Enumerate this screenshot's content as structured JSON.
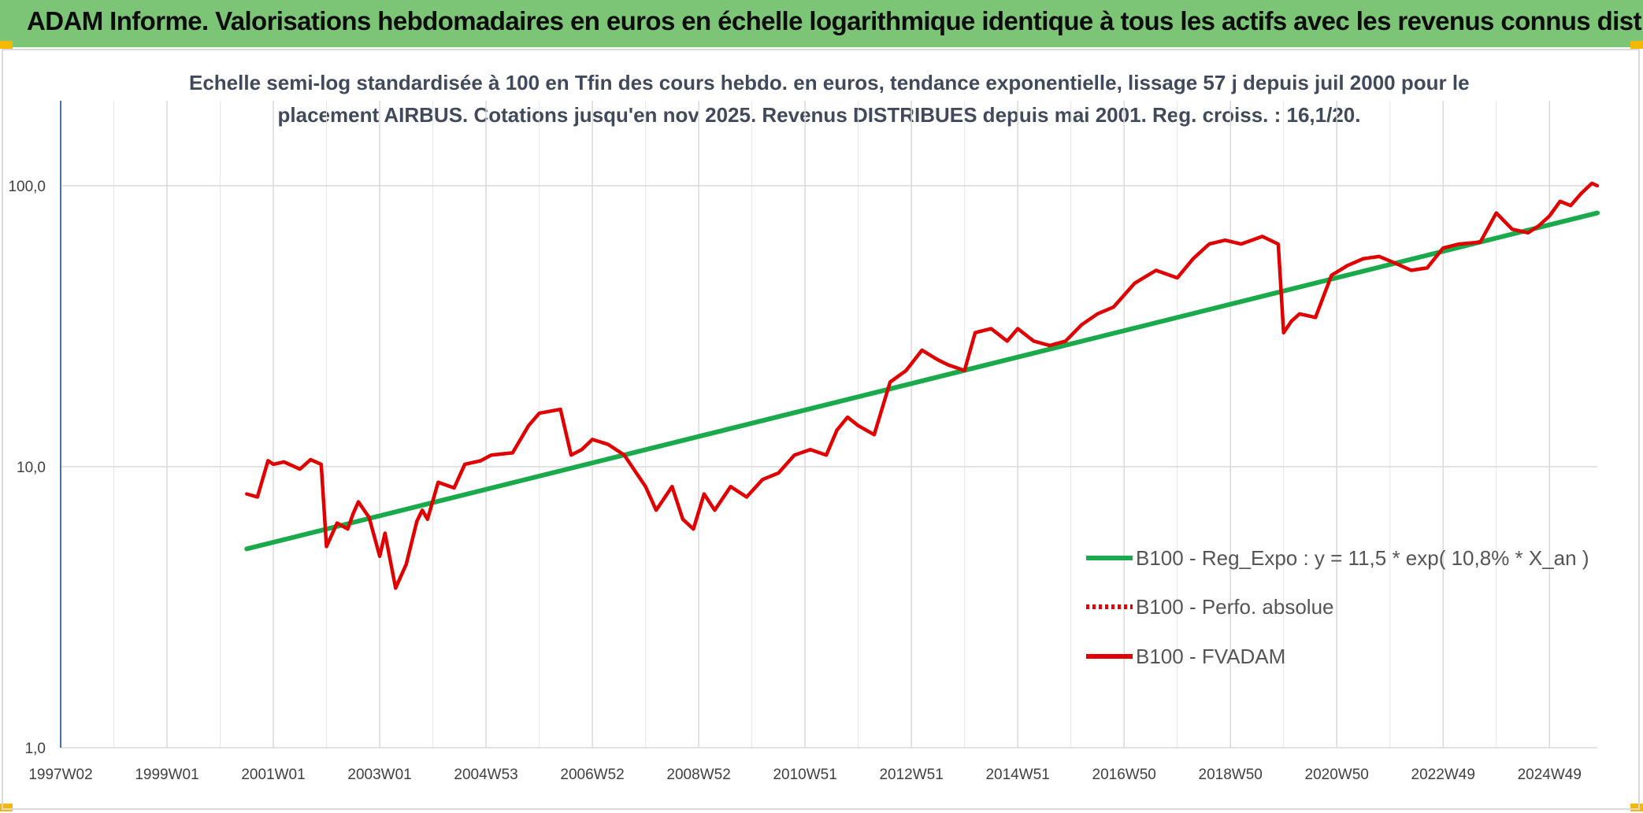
{
  "header": {
    "title": "ADAM Informe. Valorisations hebdomadaires en euros en échelle logarithmique identique à tous les actifs avec les revenus connus distribués",
    "background": "#7cc576"
  },
  "chart_data": {
    "type": "line",
    "title_line1": "Echelle semi-log standardisée à 100 en Tfin des cours hebdo. en euros, tendance exponentielle, lissage 57 j depuis juil 2000 pour le",
    "title_line2": "placement AIRBUS. Cotations jusqu'en nov 2025. Revenus DISTRIBUES depuis mai 2001. Reg. croiss. : 16,1/20.",
    "x_tick_labels": [
      "1997W02",
      "1999W01",
      "2001W01",
      "2003W01",
      "2004W53",
      "2006W52",
      "2008W52",
      "2010W51",
      "2012W51",
      "2014W51",
      "2016W50",
      "2018W50",
      "2020W50",
      "2022W49",
      "2024W49"
    ],
    "x_range": [
      1997.0,
      2025.9
    ],
    "y_scale": "log",
    "y_range": [
      1.0,
      200.0
    ],
    "y_tick_labels": [
      "1,0",
      "10,0",
      "100,0"
    ],
    "y_tick_values": [
      1,
      10,
      100
    ],
    "grid": true,
    "legend_position": "right",
    "legend": [
      "B100 - Reg_Expo : y = 11,5 * exp( 10,8% *  X_an )",
      "B100 - Perfo. absolue",
      "B100 - FVADAM"
    ],
    "colors": {
      "trend": "#1aaa4b",
      "perfo": "#e00000",
      "fvadam": "#e00000",
      "grid": "#d9d9d9",
      "axis": "#4a6fa5"
    },
    "series": [
      {
        "name": "B100 - Reg_Expo : y = 11,5 * exp( 10,8% *  X_an )",
        "style": "solid",
        "x": [
          2000.5,
          2025.9
        ],
        "y": [
          5.1,
          80.0
        ]
      },
      {
        "name": "B100 - FVADAM",
        "style": "solid",
        "x": [
          2000.5,
          2000.7,
          2000.9,
          2001.0,
          2001.2,
          2001.5,
          2001.7,
          2001.9,
          2002.0,
          2002.2,
          2002.4,
          2002.5,
          2002.6,
          2002.8,
          2003.0,
          2003.1,
          2003.3,
          2003.5,
          2003.7,
          2003.8,
          2003.9,
          2004.1,
          2004.4,
          2004.6,
          2004.9,
          2005.1,
          2005.5,
          2005.8,
          2006.0,
          2006.4,
          2006.6,
          2006.8,
          2007.0,
          2007.3,
          2007.6,
          2008.0,
          2008.2,
          2008.5,
          2008.7,
          2008.9,
          2009.1,
          2009.3,
          2009.6,
          2009.9,
          2010.2,
          2010.5,
          2010.8,
          2011.1,
          2011.4,
          2011.6,
          2011.8,
          2012.0,
          2012.3,
          2012.6,
          2012.9,
          2013.2,
          2013.5,
          2013.7,
          2014.0,
          2014.2,
          2014.5,
          2014.8,
          2015.0,
          2015.3,
          2015.6,
          2015.9,
          2016.2,
          2016.5,
          2016.8,
          2017.2,
          2017.6,
          2018.0,
          2018.3,
          2018.6,
          2018.9,
          2019.2,
          2019.6,
          2019.9,
          2020.0,
          2020.15,
          2020.3,
          2020.6,
          2020.9,
          2021.2,
          2021.5,
          2021.8,
          2022.1,
          2022.4,
          2022.7,
          2023.0,
          2023.3,
          2023.7,
          2024.0,
          2024.3,
          2024.6,
          2024.8,
          2025.0,
          2025.2,
          2025.4,
          2025.6,
          2025.8,
          2025.9
        ],
        "y": [
          8.0,
          7.8,
          10.5,
          10.2,
          10.4,
          9.8,
          10.6,
          10.2,
          5.2,
          6.3,
          6.0,
          6.8,
          7.5,
          6.6,
          4.8,
          5.8,
          3.7,
          4.5,
          6.4,
          7.0,
          6.5,
          8.8,
          8.4,
          10.2,
          10.5,
          11.0,
          11.2,
          14.0,
          15.5,
          16.0,
          11.0,
          11.5,
          12.5,
          12.0,
          11.0,
          8.5,
          7.0,
          8.5,
          6.5,
          6.0,
          8.0,
          7.0,
          8.5,
          7.8,
          9.0,
          9.5,
          11.0,
          11.5,
          11.0,
          13.5,
          15.0,
          14.0,
          13.0,
          20.0,
          22.0,
          26.0,
          24.0,
          23.0,
          22.0,
          30.0,
          31.0,
          28.0,
          31.0,
          28.0,
          27.0,
          28.0,
          32.0,
          35.0,
          37.0,
          45.0,
          50.0,
          47.0,
          55.0,
          62.0,
          64.0,
          62.0,
          66.0,
          62.0,
          30.0,
          33.0,
          35.0,
          34.0,
          48.0,
          52.0,
          55.0,
          56.0,
          53.0,
          50.0,
          51.0,
          60.0,
          62.0,
          63.0,
          80.0,
          70.0,
          68.0,
          72.0,
          78.0,
          88.0,
          85.0,
          94.0,
          102.0,
          100.0
        ]
      }
    ]
  }
}
